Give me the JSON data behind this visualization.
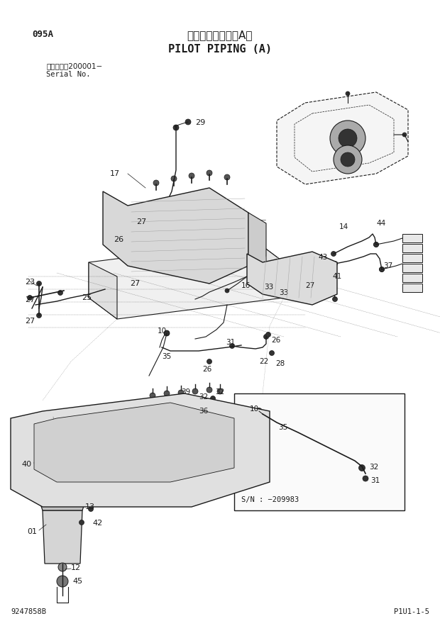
{
  "page_code": "095A",
  "title_japanese": "パイロット配管（A）",
  "title_english": "PILOT PIPING (A)",
  "serial_label": "適用号機　200001−",
  "serial_no": "Serial No.",
  "inset_label": "S/N : −209983",
  "page_ref": "P1U1-1-5",
  "drawing_ref": "9247858B",
  "bg": "#ffffff",
  "lc": "#1a1a1a"
}
